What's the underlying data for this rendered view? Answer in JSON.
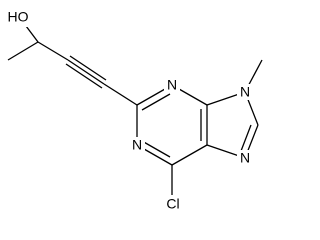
{
  "nodes": [
    {
      "label": "HO"
    },
    {
      "label": "N"
    },
    {
      "label": "N"
    },
    {
      "label": "N"
    },
    {
      "label": "N"
    },
    {
      "label": "Cl"
    }
  ]
}
